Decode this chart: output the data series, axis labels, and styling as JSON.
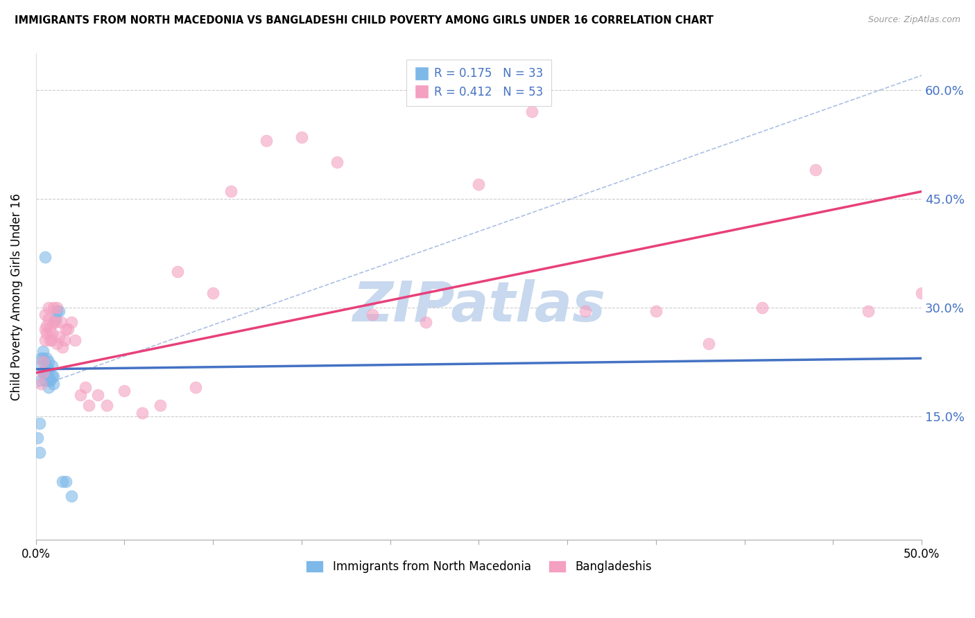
{
  "title": "IMMIGRANTS FROM NORTH MACEDONIA VS BANGLADESHI CHILD POVERTY AMONG GIRLS UNDER 16 CORRELATION CHART",
  "source": "Source: ZipAtlas.com",
  "ylabel": "Child Poverty Among Girls Under 16",
  "xlim": [
    0.0,
    0.5
  ],
  "ylim": [
    -0.02,
    0.65
  ],
  "yticks": [
    0.15,
    0.3,
    0.45,
    0.6
  ],
  "ytick_labels": [
    "15.0%",
    "30.0%",
    "45.0%",
    "60.0%"
  ],
  "xticks": [
    0.0,
    0.05,
    0.1,
    0.15,
    0.2,
    0.25,
    0.3,
    0.35,
    0.4,
    0.45,
    0.5
  ],
  "xtick_labels_show": {
    "0.0": "0.0%",
    "0.5": "50.0%"
  },
  "legend_r1": "R = 0.175",
  "legend_n1": "N = 33",
  "legend_r2": "R = 0.412",
  "legend_n2": "N = 53",
  "color_blue": "#7db8e8",
  "color_pink": "#f4a0c0",
  "color_blue_line": "#4472c4",
  "color_pink_line": "#e8407a",
  "color_watermark": "#c8d8ee",
  "watermark_text": "ZIPatlas",
  "blue_scatter_x": [
    0.001,
    0.002,
    0.002,
    0.003,
    0.003,
    0.003,
    0.004,
    0.004,
    0.004,
    0.005,
    0.005,
    0.005,
    0.005,
    0.006,
    0.006,
    0.006,
    0.006,
    0.007,
    0.007,
    0.007,
    0.007,
    0.008,
    0.008,
    0.009,
    0.009,
    0.01,
    0.01,
    0.011,
    0.012,
    0.013,
    0.015,
    0.017,
    0.02
  ],
  "blue_scatter_y": [
    0.12,
    0.14,
    0.1,
    0.2,
    0.22,
    0.23,
    0.21,
    0.23,
    0.24,
    0.215,
    0.21,
    0.2,
    0.37,
    0.21,
    0.215,
    0.22,
    0.23,
    0.19,
    0.205,
    0.215,
    0.225,
    0.2,
    0.2,
    0.205,
    0.22,
    0.205,
    0.195,
    0.285,
    0.295,
    0.295,
    0.06,
    0.06,
    0.04
  ],
  "pink_scatter_x": [
    0.003,
    0.004,
    0.004,
    0.005,
    0.005,
    0.005,
    0.006,
    0.006,
    0.007,
    0.007,
    0.008,
    0.008,
    0.009,
    0.009,
    0.01,
    0.01,
    0.011,
    0.012,
    0.012,
    0.013,
    0.014,
    0.015,
    0.016,
    0.017,
    0.018,
    0.02,
    0.022,
    0.025,
    0.028,
    0.03,
    0.035,
    0.04,
    0.05,
    0.06,
    0.07,
    0.08,
    0.09,
    0.1,
    0.11,
    0.13,
    0.15,
    0.17,
    0.19,
    0.22,
    0.25,
    0.28,
    0.31,
    0.35,
    0.38,
    0.41,
    0.44,
    0.47,
    0.5
  ],
  "pink_scatter_y": [
    0.195,
    0.225,
    0.21,
    0.27,
    0.29,
    0.255,
    0.265,
    0.275,
    0.285,
    0.3,
    0.255,
    0.27,
    0.255,
    0.265,
    0.28,
    0.3,
    0.28,
    0.3,
    0.25,
    0.26,
    0.28,
    0.245,
    0.255,
    0.27,
    0.27,
    0.28,
    0.255,
    0.18,
    0.19,
    0.165,
    0.18,
    0.165,
    0.185,
    0.155,
    0.165,
    0.35,
    0.19,
    0.32,
    0.46,
    0.53,
    0.535,
    0.5,
    0.29,
    0.28,
    0.47,
    0.57,
    0.295,
    0.295,
    0.25,
    0.3,
    0.49,
    0.295,
    0.32
  ],
  "blue_line_x": [
    0.0,
    0.5
  ],
  "blue_line_y": [
    0.215,
    0.23
  ],
  "pink_line_x": [
    0.0,
    0.5
  ],
  "pink_line_y": [
    0.21,
    0.46
  ],
  "diag_line_x": [
    0.0,
    0.5
  ],
  "diag_line_y": [
    0.19,
    0.62
  ]
}
